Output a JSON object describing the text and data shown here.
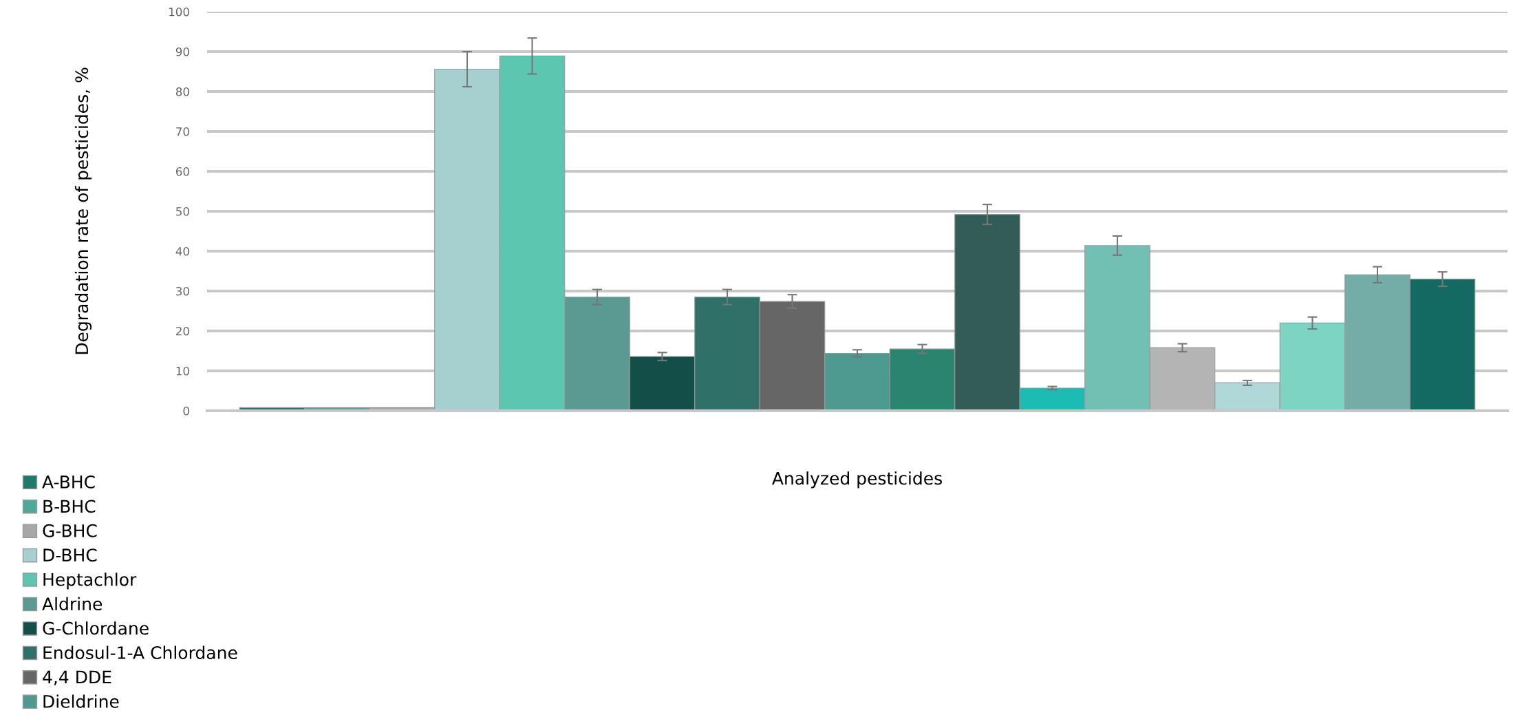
{
  "chart_data": {
    "type": "bar",
    "xlabel": "Analyzed pesticides",
    "ylabel": "Degradation rate of pesticides, %",
    "categories": [
      null
    ],
    "series": [
      {
        "name": "A-BHC",
        "color": "#1e7a6a",
        "values": [
          0.8
        ]
      },
      {
        "name": "B-BHC",
        "color": "#4fa89a",
        "values": [
          0.8
        ]
      },
      {
        "name": "G-BHC",
        "color": "#a8a8a8",
        "values": [
          0.8
        ]
      },
      {
        "name": "D-BHC",
        "color": "#a6d0d0",
        "values": [
          85.6
        ],
        "errors": [
          4.4
        ]
      },
      {
        "name": "Heptachlor",
        "color": "#5cc6b0",
        "values": [
          88.9
        ],
        "errors": [
          4.5
        ]
      },
      {
        "name": "Aldrine",
        "color": "#5a9a92",
        "values": [
          28.5
        ],
        "errors": [
          1.9
        ]
      },
      {
        "name": "G-Chlordane",
        "color": "#134f48",
        "values": [
          13.6
        ],
        "errors": [
          1.0
        ]
      },
      {
        "name": "Endosul-1-A Chlordane",
        "color": "#2f7068",
        "values": [
          28.5
        ],
        "errors": [
          1.9
        ]
      },
      {
        "name": "4,4 DDE",
        "color": "#666666",
        "values": [
          27.4
        ],
        "errors": [
          1.7
        ]
      },
      {
        "name": "Dieldrine",
        "color": "#4e9a90",
        "values": [
          14.4
        ],
        "errors": [
          0.9
        ]
      },
      {
        "color": "#2a8470",
        "values": [
          15.5
        ],
        "errors": [
          1.1
        ]
      },
      {
        "color": "#335c58",
        "values": [
          49.2
        ],
        "errors": [
          2.5
        ]
      },
      {
        "color": "#1cbcb4",
        "values": [
          5.7
        ],
        "errors": [
          0.4
        ]
      },
      {
        "color": "#72c0b4",
        "values": [
          41.4
        ],
        "errors": [
          2.4
        ]
      },
      {
        "color": "#b4b4b4",
        "values": [
          15.8
        ],
        "errors": [
          1.0
        ]
      },
      {
        "color": "#b0d8d8",
        "values": [
          7.0
        ],
        "errors": [
          0.6
        ]
      },
      {
        "color": "#7ed4c2",
        "values": [
          22.0
        ],
        "errors": [
          1.5
        ]
      },
      {
        "color": "#74aca8",
        "values": [
          34.1
        ],
        "errors": [
          2.0
        ]
      },
      {
        "color": "#136a62",
        "values": [
          33.0
        ],
        "errors": [
          1.8
        ]
      }
    ],
    "ylim": [
      0,
      100
    ],
    "yticks": [
      0,
      10,
      20,
      30,
      40,
      50,
      60,
      70,
      80,
      90,
      100
    ],
    "grid": "y",
    "legend": "bottom left"
  }
}
